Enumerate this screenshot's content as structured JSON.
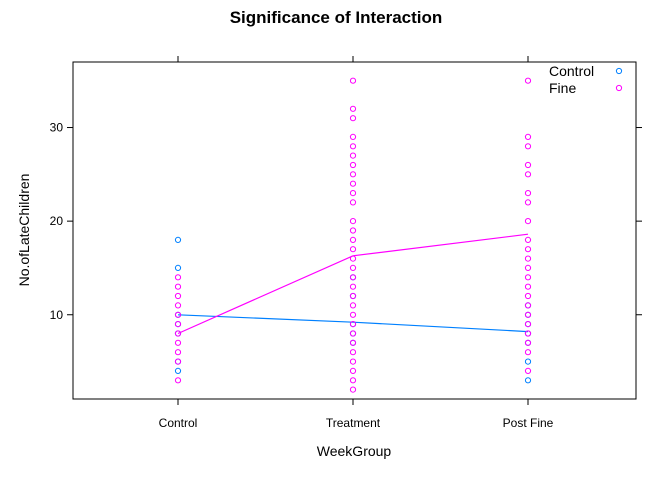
{
  "chart_data": {
    "type": "scatter",
    "title": "Significance of Interaction",
    "xlabel": "WeekGroup",
    "ylabel": "No.ofLateChildren",
    "categories": [
      "Control",
      "Treatment",
      "Post Fine"
    ],
    "ylim": [
      1,
      37
    ],
    "yticks": [
      10,
      20,
      30
    ],
    "grid": false,
    "legend_position": "top-right",
    "series": [
      {
        "name": "Control",
        "color": "#0080ff",
        "points": {
          "Control": [
            18,
            15,
            10,
            9,
            8,
            5,
            4
          ],
          "Treatment": [
            14,
            12,
            9,
            8,
            7
          ],
          "Post Fine": [
            11,
            10,
            9,
            8,
            7,
            5,
            3
          ]
        },
        "means": [
          10,
          9.2,
          8.2
        ]
      },
      {
        "name": "Fine",
        "color": "#ff00ff",
        "points": {
          "Control": [
            14,
            13,
            12,
            11,
            10,
            9,
            8,
            7,
            6,
            5,
            3
          ],
          "Treatment": [
            35,
            32,
            31,
            29,
            28,
            27,
            26,
            25,
            24,
            23,
            22,
            20,
            19,
            18,
            17,
            16,
            15,
            14,
            13,
            12,
            11,
            10,
            9,
            8,
            7,
            6,
            5,
            4,
            3,
            2
          ],
          "Post Fine": [
            35,
            29,
            28,
            26,
            25,
            23,
            22,
            20,
            18,
            17,
            16,
            15,
            14,
            13,
            12,
            11,
            10,
            9,
            8,
            7,
            6,
            4
          ]
        },
        "means": [
          8,
          16.3,
          18.6
        ]
      }
    ]
  }
}
